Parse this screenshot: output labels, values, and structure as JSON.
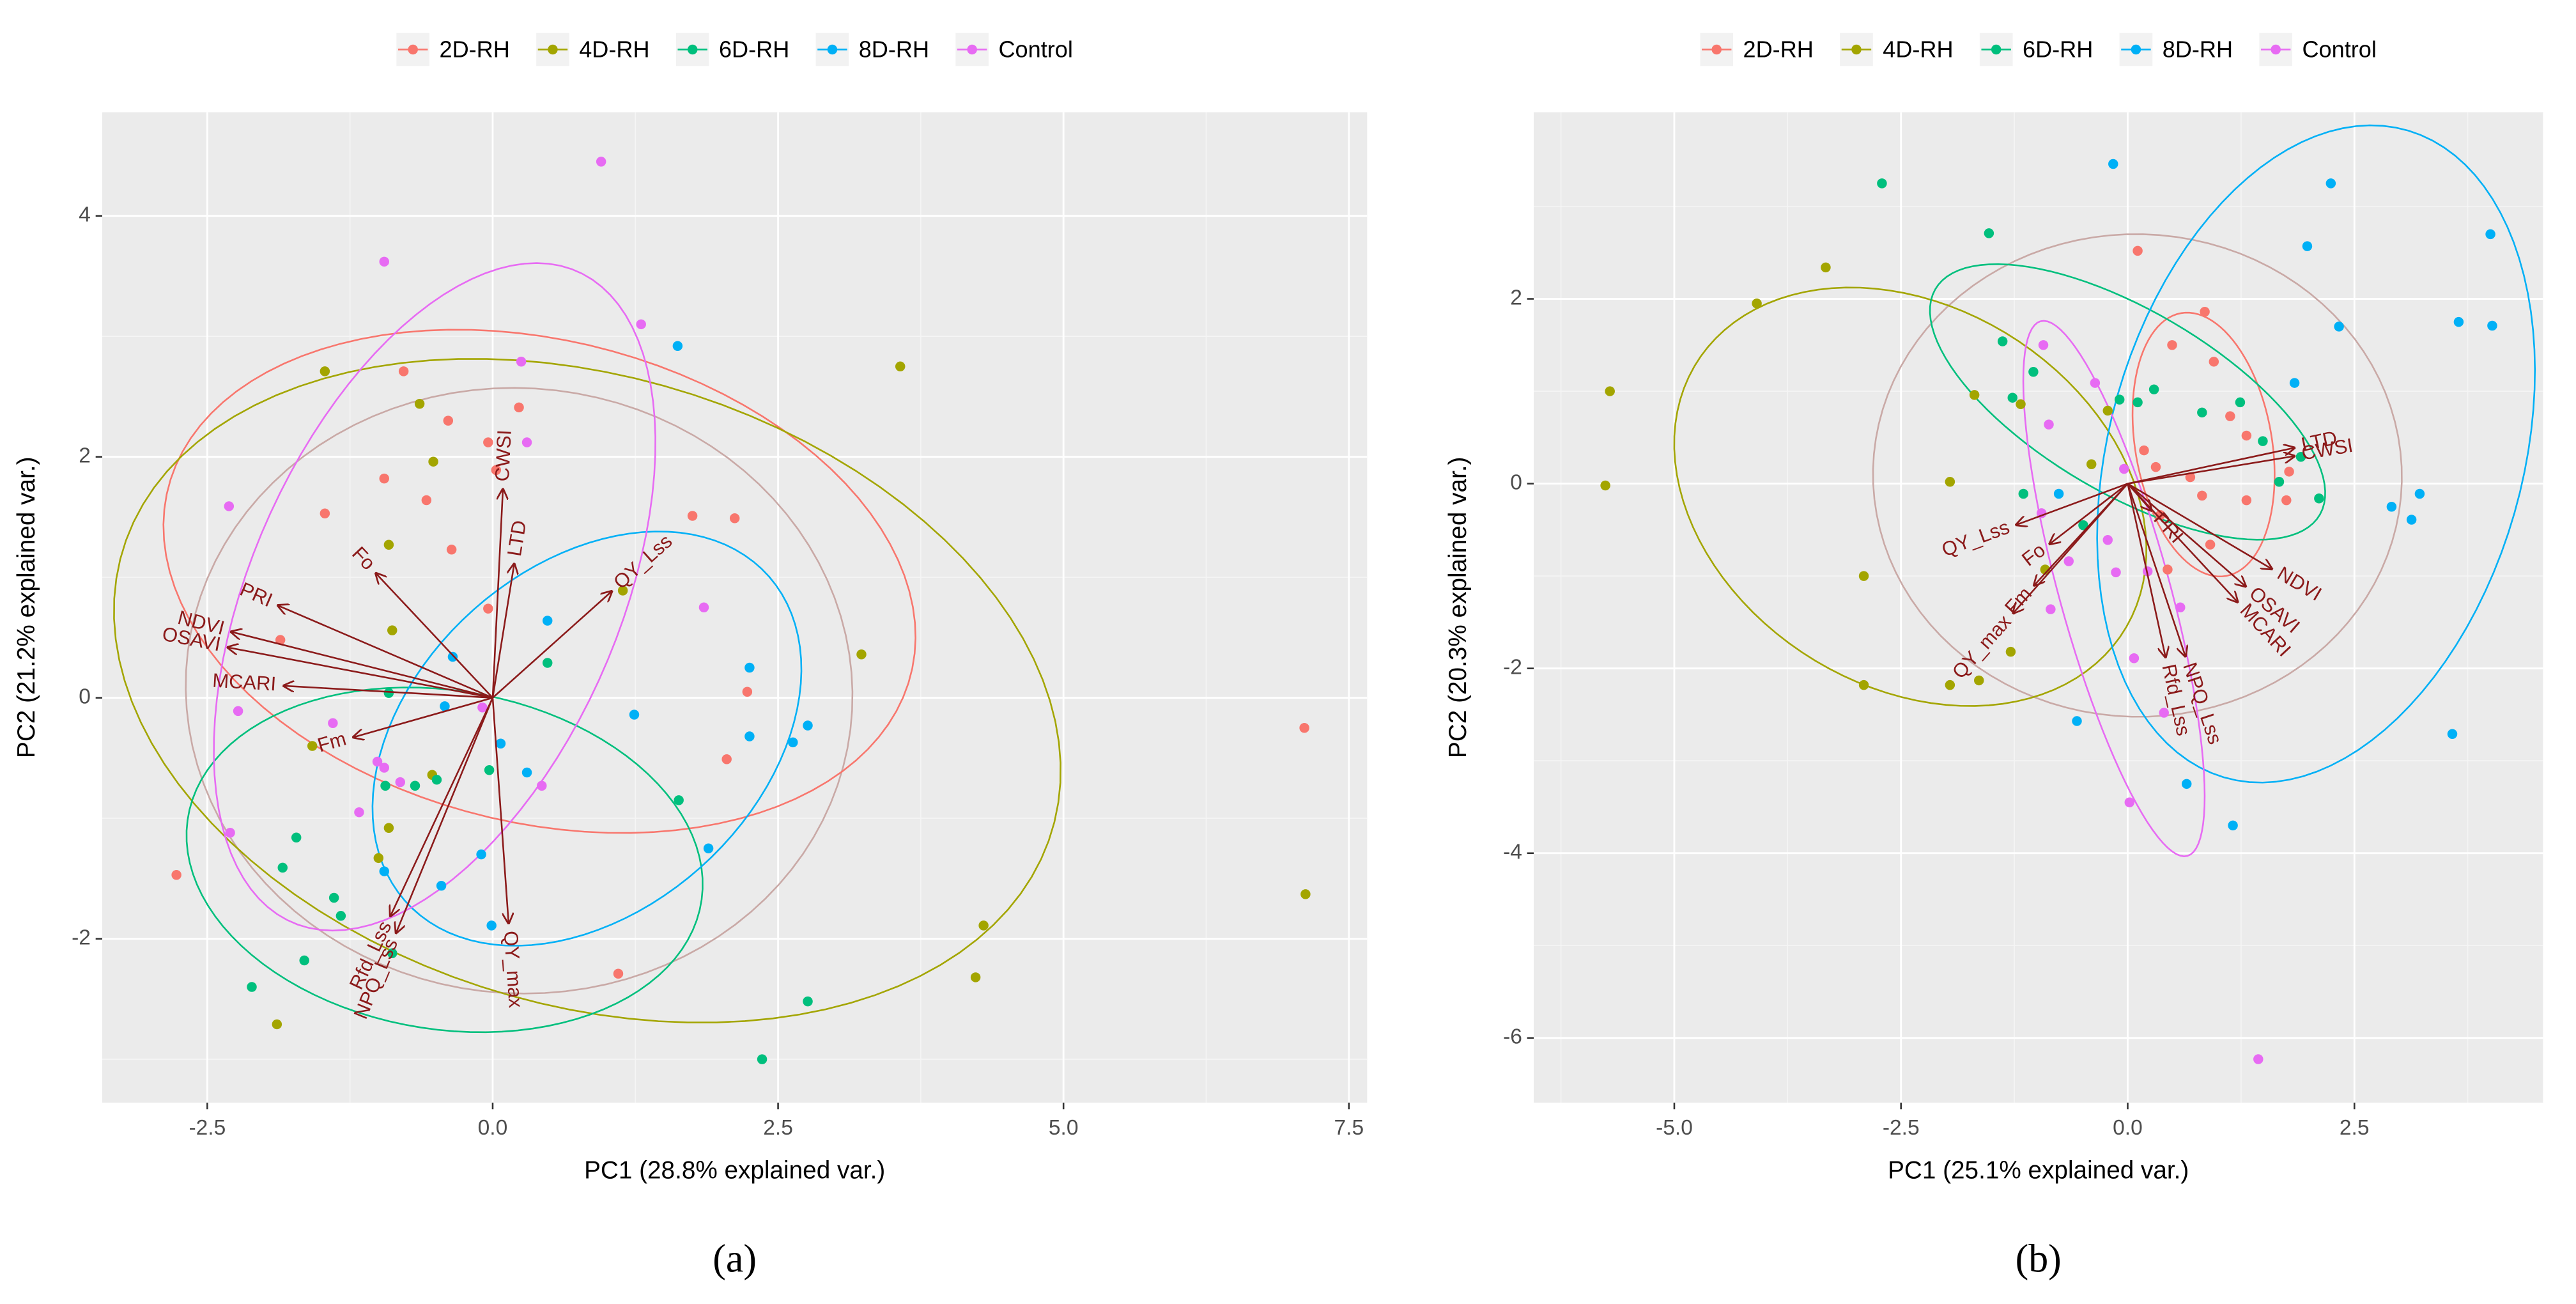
{
  "chart_data": [
    {
      "type": "biplot",
      "caption": "(a)",
      "x_label": "PC1 (28.8% explained var.)",
      "y_label": "PC2 (21.2% explained var.)",
      "xlim": [
        -3.42,
        7.66
      ],
      "ylim": [
        -3.36,
        4.86
      ],
      "xticks": [
        -2.5,
        {
          "value": 0,
          "label": "0.0"
        },
        2.5,
        {
          "value": 5,
          "label": "5.0"
        },
        7.5
      ],
      "yticks": [
        -2,
        0,
        2,
        4
      ],
      "grid": true,
      "legend": "top",
      "series": [
        {
          "name": "2D-RH",
          "color": "#F8766D",
          "x": [
            -0.78,
            -0.39,
            -0.04,
            0.23,
            -0.95,
            -0.58,
            -0.36,
            0.03,
            -0.04,
            1.75,
            2.12,
            2.23,
            2.05,
            -1.47,
            -1.86,
            -2.77,
            1.1,
            7.11
          ],
          "values": [
            2.71,
            2.3,
            2.12,
            2.41,
            1.82,
            1.64,
            1.23,
            1.89,
            0.74,
            1.51,
            1.49,
            0.05,
            -0.51,
            1.53,
            0.48,
            -1.47,
            -2.29,
            -0.25
          ]
        },
        {
          "name": "4D-RH",
          "color": "#A3A500",
          "x": [
            -1.47,
            -0.64,
            -0.52,
            -0.91,
            -0.88,
            3.57,
            3.23,
            1.14,
            -1.58,
            -1.0,
            -0.53,
            4.3,
            4.23,
            7.12,
            -1.89,
            -0.91
          ],
          "values": [
            2.71,
            2.44,
            1.96,
            1.27,
            0.56,
            2.75,
            0.36,
            0.89,
            -0.4,
            -1.33,
            -0.64,
            -1.89,
            -2.32,
            -1.63,
            -2.71,
            -1.08
          ]
        },
        {
          "name": "6D-RH",
          "color": "#00BF7D",
          "x": [
            -0.91,
            -0.94,
            -0.68,
            -0.49,
            0.48,
            -0.03,
            1.63,
            -1.72,
            -1.39,
            -1.33,
            -1.65,
            -2.11,
            -0.88,
            2.76,
            2.36,
            -1.84
          ],
          "values": [
            0.04,
            -0.73,
            -0.73,
            -0.68,
            0.29,
            -0.6,
            -0.85,
            -1.16,
            -1.66,
            -1.81,
            -2.18,
            -2.4,
            -2.12,
            -2.52,
            -3.0,
            -1.41
          ]
        },
        {
          "name": "8D-RH",
          "color": "#00B0F6",
          "x": [
            1.62,
            0.48,
            2.25,
            2.25,
            2.76,
            2.63,
            1.24,
            0.07,
            -0.42,
            0.3,
            -0.1,
            -0.45,
            -0.01,
            1.89,
            -0.95,
            -0.35
          ],
          "values": [
            2.92,
            0.64,
            0.25,
            -0.32,
            -0.23,
            -0.37,
            -0.14,
            -0.38,
            -0.07,
            -0.62,
            -1.3,
            -1.56,
            -1.89,
            -1.25,
            -1.44,
            0.34
          ]
        },
        {
          "name": "Control",
          "color": "#E76BF3",
          "x": [
            0.95,
            -0.95,
            1.3,
            0.25,
            0.3,
            -2.31,
            1.85,
            -2.23,
            -1.4,
            -0.95,
            -1.01,
            -1.17,
            -2.3,
            0.43,
            -0.81,
            -0.09
          ],
          "values": [
            4.45,
            3.62,
            3.1,
            2.79,
            2.12,
            1.59,
            0.75,
            -0.11,
            -0.21,
            -0.58,
            -0.53,
            -0.95,
            -1.12,
            -0.73,
            -0.7,
            -0.08
          ]
        }
      ],
      "arrows": [
        {
          "label": "CWSI",
          "x": 0.09,
          "y": 1.74
        },
        {
          "label": "LTD",
          "x": 0.19,
          "y": 1.12
        },
        {
          "label": "QY_Lss",
          "x": 1.05,
          "y": 0.89
        },
        {
          "label": "PRI",
          "x": -1.89,
          "y": 0.77
        },
        {
          "label": "NDVI",
          "x": -2.3,
          "y": 0.55
        },
        {
          "label": "OSAVI",
          "x": -2.33,
          "y": 0.42
        },
        {
          "label": "MCARI",
          "x": -1.84,
          "y": 0.1
        },
        {
          "label": "Fo",
          "x": -1.03,
          "y": 1.04
        },
        {
          "label": "Fm",
          "x": -1.23,
          "y": -0.33
        },
        {
          "label": "Rfd_Lss",
          "x": -0.9,
          "y": -1.82
        },
        {
          "label": "NPQ_Lss",
          "x": -0.85,
          "y": -1.96
        },
        {
          "label": "QY_max",
          "x": 0.14,
          "y": -1.88
        }
      ]
    },
    {
      "type": "biplot",
      "caption": "(b)",
      "x_label": "PC1 (25.1% explained var.)",
      "y_label": "PC2 (20.3% explained var.)",
      "xlim": [
        -6.55,
        4.58
      ],
      "ylim": [
        -6.7,
        4.02
      ],
      "xticks": [
        {
          "value": -5,
          "label": "-5.0"
        },
        -2.5,
        {
          "value": 0,
          "label": "0.0"
        },
        2.5
      ],
      "yticks": [
        -6,
        -4,
        -2,
        0,
        2
      ],
      "grid": true,
      "legend": "top",
      "series": [
        {
          "name": "2D-RH",
          "color": "#F8766D",
          "x": [
            0.11,
            0.85,
            0.49,
            0.95,
            1.13,
            1.31,
            0.82,
            1.31,
            0.36,
            0.91,
            0.44,
            0.31,
            1.75,
            1.78,
            0.18,
            0.69
          ],
          "values": [
            2.52,
            1.86,
            1.5,
            1.32,
            0.73,
            0.52,
            -0.13,
            -0.18,
            -0.34,
            -0.66,
            -0.93,
            0.18,
            -0.18,
            0.13,
            0.36,
            0.07
          ]
        },
        {
          "name": "4D-RH",
          "color": "#A3A500",
          "x": [
            -5.71,
            -5.76,
            -4.09,
            -3.33,
            -1.96,
            -2.91,
            -2.91,
            -1.96,
            -1.69,
            -1.18,
            -0.22,
            -0.4,
            -0.91,
            -1.64,
            -1.29
          ],
          "values": [
            1.0,
            -0.02,
            1.95,
            2.34,
            0.02,
            -1.0,
            -2.18,
            -2.18,
            0.96,
            0.86,
            0.79,
            0.21,
            -0.93,
            -2.13,
            -1.82
          ]
        },
        {
          "name": "6D-RH",
          "color": "#00BF7D",
          "x": [
            -2.71,
            -1.53,
            -1.38,
            -1.27,
            -1.04,
            -0.09,
            0.11,
            0.29,
            0.82,
            1.24,
            1.49,
            2.11,
            1.91,
            -1.15,
            -0.49,
            1.67
          ],
          "values": [
            3.25,
            2.71,
            1.54,
            0.93,
            1.21,
            0.91,
            0.88,
            1.02,
            0.77,
            0.88,
            0.46,
            -0.16,
            0.29,
            -0.11,
            -0.45,
            0.02
          ]
        },
        {
          "name": "8D-RH",
          "color": "#00B0F6",
          "x": [
            -0.16,
            2.24,
            1.98,
            2.33,
            1.84,
            3.65,
            4.0,
            4.02,
            3.22,
            2.91,
            3.13,
            3.58,
            0.65,
            1.16,
            -0.56,
            -0.76
          ],
          "values": [
            3.46,
            3.25,
            2.57,
            1.7,
            1.09,
            1.75,
            2.7,
            1.71,
            -0.11,
            -0.25,
            -0.39,
            -2.71,
            -3.25,
            -3.7,
            -2.57,
            -0.11
          ]
        },
        {
          "name": "Control",
          "color": "#E76BF3",
          "x": [
            -0.93,
            -0.36,
            -0.87,
            -0.65,
            -0.13,
            0.22,
            0.58,
            -0.85,
            0.07,
            0.4,
            0.02,
            1.44,
            -0.04,
            -0.95,
            -0.22
          ],
          "values": [
            1.5,
            1.09,
            0.64,
            -0.84,
            -0.96,
            -0.95,
            -1.34,
            -1.36,
            -1.89,
            -2.48,
            -3.45,
            -6.23,
            0.16,
            -0.32,
            -0.61
          ]
        }
      ],
      "arrows": [
        {
          "label": "LTD",
          "x": 1.85,
          "y": 0.39
        },
        {
          "label": "CWSI",
          "x": 1.85,
          "y": 0.3
        },
        {
          "label": "NDVI",
          "x": 1.6,
          "y": -0.93
        },
        {
          "label": "OSAVI",
          "x": 1.31,
          "y": -1.12
        },
        {
          "label": "MCARI",
          "x": 1.22,
          "y": -1.29
        },
        {
          "label": "NPQ_Lss",
          "x": 0.64,
          "y": -1.88
        },
        {
          "label": "Rfd_Lss",
          "x": 0.42,
          "y": -1.89
        },
        {
          "label": "PRI",
          "x": 0.27,
          "y": -0.3
        },
        {
          "label": "QY_Lss",
          "x": -1.24,
          "y": -0.45
        },
        {
          "label": "Fo",
          "x": -0.87,
          "y": -0.66
        },
        {
          "label": "Fm",
          "x": -1.04,
          "y": -1.11
        },
        {
          "label": "QY_max",
          "x": -1.27,
          "y": -1.41
        }
      ]
    }
  ]
}
